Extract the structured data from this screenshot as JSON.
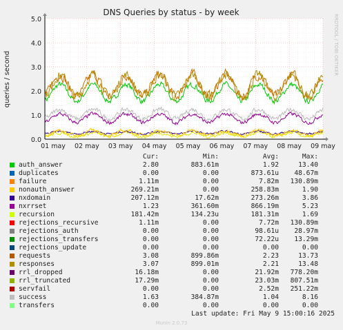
{
  "colors": {
    "background": "#f0f0f0",
    "plot_bg": "#ffffff",
    "grid": "#ff9999",
    "axis": "#000000"
  },
  "chart_data": {
    "type": "line",
    "title": "DNS Queries by status - by week",
    "ylabel": "queries / second",
    "watermark": "RRDTOOL / TOBI OETIKER",
    "ylim": [
      0,
      5
    ],
    "yticks": [
      "0.0",
      "1.0",
      "2.0",
      "3.0",
      "4.0",
      "5.0"
    ],
    "xticks": [
      "01 may",
      "02 may",
      "03 may",
      "04 may",
      "05 may",
      "06 may",
      "07 may",
      "08 may",
      "09 may"
    ],
    "grid": true,
    "series": [
      {
        "name": "auth_answer",
        "color": "#00cc00",
        "base": 1.92,
        "amp": 0.35,
        "noise": 0.18
      },
      {
        "name": "requests",
        "color": "#cc7000",
        "base": 2.23,
        "amp": 0.45,
        "noise": 0.32
      },
      {
        "name": "responses",
        "color": "#b38b00",
        "base": 2.21,
        "amp": 0.45,
        "noise": 0.3
      },
      {
        "name": "success",
        "color": "#bbbbbb",
        "base": 1.04,
        "amp": 0.2,
        "noise": 0.15
      },
      {
        "name": "nxrrset",
        "color": "#990099",
        "base": 0.87,
        "amp": 0.18,
        "noise": 0.12
      },
      {
        "name": "recursion",
        "color": "#e6e600",
        "base": 0.181,
        "amp": 0.08,
        "noise": 0.1
      },
      {
        "name": "nxdomain",
        "color": "#330099",
        "base": 0.273,
        "amp": 0.05,
        "noise": 0.06
      },
      {
        "name": "nonauth_answer",
        "color": "#ffcc00",
        "base": 0.259,
        "amp": 0.1,
        "noise": 0.12
      }
    ]
  },
  "legend": {
    "headers": [
      "Cur:",
      "Min:",
      "Avg:",
      "Max:"
    ],
    "rows": [
      {
        "name": "auth_answer",
        "color": "#00cc00",
        "cur": "2.80",
        "min": "883.61m",
        "avg": "1.92",
        "max": "13.40"
      },
      {
        "name": "duplicates",
        "color": "#0066b3",
        "cur": "0.00",
        "min": "0.00",
        "avg": "873.61u",
        "max": "48.67m"
      },
      {
        "name": "failure",
        "color": "#ff8000",
        "cur": "1.11m",
        "min": "0.00",
        "avg": "7.82m",
        "max": "130.89m"
      },
      {
        "name": "nonauth_answer",
        "color": "#ffcc00",
        "cur": "269.21m",
        "min": "0.00",
        "avg": "258.83m",
        "max": "1.90"
      },
      {
        "name": "nxdomain",
        "color": "#330099",
        "cur": "207.12m",
        "min": "17.62m",
        "avg": "273.26m",
        "max": "3.86"
      },
      {
        "name": "nxrrset",
        "color": "#990099",
        "cur": "1.23",
        "min": "361.60m",
        "avg": "866.19m",
        "max": "5.23"
      },
      {
        "name": "recursion",
        "color": "#ccff00",
        "cur": "181.42m",
        "min": "134.23u",
        "avg": "181.31m",
        "max": "1.69"
      },
      {
        "name": "rejections_recursive",
        "color": "#ff0000",
        "cur": "1.11m",
        "min": "0.00",
        "avg": "7.72m",
        "max": "130.89m"
      },
      {
        "name": "rejections_auth",
        "color": "#808080",
        "cur": "0.00",
        "min": "0.00",
        "avg": "98.61u",
        "max": "28.97m"
      },
      {
        "name": "rejections_transfers",
        "color": "#008f00",
        "cur": "0.00",
        "min": "0.00",
        "avg": "72.22u",
        "max": "13.29m"
      },
      {
        "name": "rejections_update",
        "color": "#00487d",
        "cur": "0.00",
        "min": "0.00",
        "avg": "0.00",
        "max": "0.00"
      },
      {
        "name": "requests",
        "color": "#b35a00",
        "cur": "3.08",
        "min": "899.86m",
        "avg": "2.23",
        "max": "13.73"
      },
      {
        "name": "responses",
        "color": "#b38f00",
        "cur": "3.07",
        "min": "899.01m",
        "avg": "2.21",
        "max": "13.48"
      },
      {
        "name": "rrl_dropped",
        "color": "#6b006b",
        "cur": "16.18m",
        "min": "0.00",
        "avg": "21.92m",
        "max": "778.20m"
      },
      {
        "name": "rrl_truncated",
        "color": "#8fb300",
        "cur": "17.29m",
        "min": "0.00",
        "avg": "23.03m",
        "max": "807.51m"
      },
      {
        "name": "servfail",
        "color": "#b30000",
        "cur": "0.00",
        "min": "0.00",
        "avg": "2.52m",
        "max": "251.22m"
      },
      {
        "name": "success",
        "color": "#bebebe",
        "cur": "1.63",
        "min": "384.87m",
        "avg": "1.04",
        "max": "8.16"
      },
      {
        "name": "transfers",
        "color": "#80ff80",
        "cur": "0.00",
        "min": "0.00",
        "avg": "0.00",
        "max": "0.00"
      }
    ]
  },
  "footer": {
    "last_update": "Last update: Fri May  9 15:00:16 2025",
    "munin": "Munin 2.0.73"
  }
}
